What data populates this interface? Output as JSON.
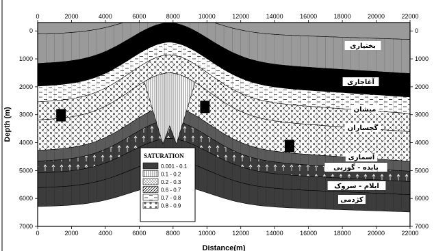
{
  "axes": {
    "xlabel": "Distance(m)",
    "ylabel": "Depth (m)",
    "x_ticks": [
      "0",
      "2000",
      "4000",
      "6000",
      "8000",
      "10000",
      "12000",
      "14000",
      "16000",
      "18000",
      "20000",
      "22000"
    ],
    "y_ticks": [
      "0",
      "1000",
      "2000",
      "3000",
      "4000",
      "5000",
      "6000",
      "7000"
    ],
    "xlim": [
      0,
      22000
    ],
    "ylim": [
      7000,
      0
    ]
  },
  "formations": [
    "بختیاری",
    "آغاجاری",
    "میشان",
    "گچساران",
    "آسماری",
    "پابده - گورپی",
    "ایلام - سروک",
    "کژدمی"
  ],
  "legend": {
    "title": "SATURATION",
    "items": [
      {
        "label": "0.001 - 0.1",
        "pattern": "dark"
      },
      {
        "label": "0.1 - 0.2",
        "pattern": "vlines"
      },
      {
        "label": "0.2 - 0.3",
        "pattern": "dots"
      },
      {
        "label": "0.6 - 0.7",
        "pattern": "diag"
      },
      {
        "label": "0.7 - 0.8",
        "pattern": "dashes"
      },
      {
        "label": "0.8 - 0.9",
        "pattern": "crosses"
      }
    ]
  },
  "colors": {
    "sky": "#9a9a9a",
    "bakhtiari": "#000000",
    "aghajari": "#000000",
    "mishan": "#ffffff",
    "gachsaran": "#ffffff",
    "asmari": "#5a5a5a",
    "deep": "#3c3c3c",
    "water": "#ffffff"
  }
}
